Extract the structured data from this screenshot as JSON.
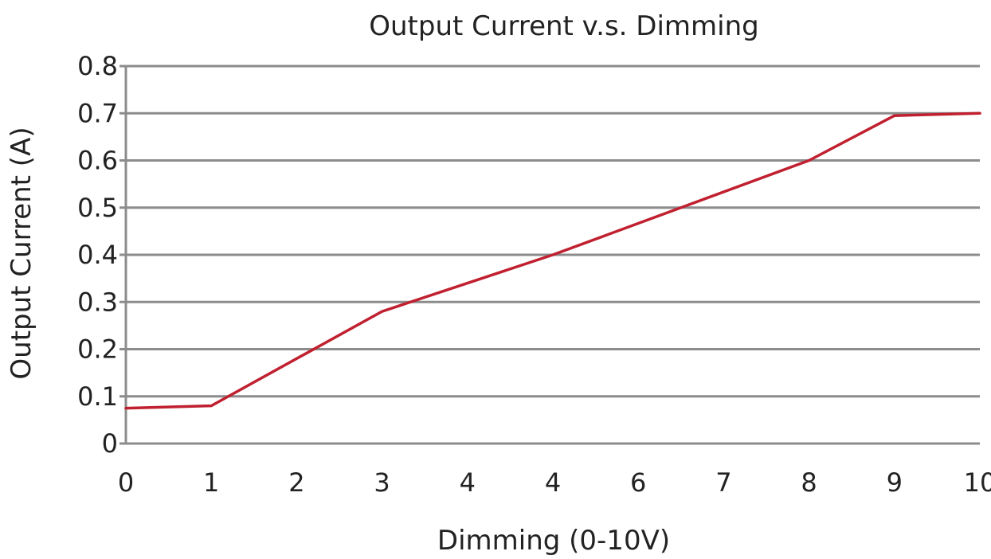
{
  "chart_data": {
    "type": "line",
    "title": "Output Current v.s. Dimming",
    "xlabel": "Dimming (0-10V)",
    "ylabel": "Output Current (A)",
    "x_tick_labels": [
      "0",
      "1",
      "2",
      "3",
      "4",
      "4",
      "6",
      "7",
      "8",
      "9",
      "10"
    ],
    "y_tick_labels": [
      "0",
      "0.1",
      "0.2",
      "0.3",
      "0.4",
      "0.5",
      "0.6",
      "0.7",
      "0.8"
    ],
    "xlim": [
      0,
      10
    ],
    "ylim": [
      0,
      0.8
    ],
    "grid": true,
    "series": [
      {
        "color": "#c0202f",
        "x": [
          0,
          1,
          3,
          5,
          8,
          9,
          10
        ],
        "y": [
          0.075,
          0.08,
          0.28,
          0.4,
          0.6,
          0.695,
          0.7
        ]
      }
    ]
  }
}
